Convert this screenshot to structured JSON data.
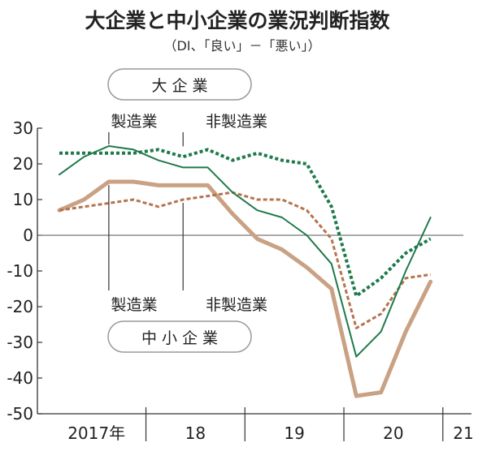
{
  "chart_data": {
    "type": "line",
    "title": "大企業と中小企業の業況判断指数",
    "subtitle": "（DI、「良い」－「悪い」）",
    "ylim": [
      -50,
      30
    ],
    "yticks": [
      30,
      20,
      10,
      0,
      -10,
      -20,
      -30,
      -40,
      -50
    ],
    "ytick_labels": [
      "30",
      "20",
      "10",
      "0",
      "-10",
      "-20",
      "-30",
      "-40",
      "-50"
    ],
    "x": [
      "2017Q1",
      "2017Q2",
      "2017Q3",
      "2017Q4",
      "2018Q1",
      "2018Q2",
      "2018Q3",
      "2018Q4",
      "2019Q1",
      "2019Q2",
      "2019Q3",
      "2019Q4",
      "2020Q1",
      "2020Q2",
      "2020Q3",
      "2020Q4",
      "2021Q1"
    ],
    "year_labels": [
      {
        "label": "2017年",
        "start": 0,
        "end": 3
      },
      {
        "label": "18",
        "start": 4,
        "end": 7
      },
      {
        "label": "19",
        "start": 8,
        "end": 11
      },
      {
        "label": "20",
        "start": 12,
        "end": 15
      },
      {
        "label": "21",
        "start": 16,
        "end": 16
      }
    ],
    "groups": {
      "large": "大企業",
      "small": "中小企業"
    },
    "series_labels": {
      "manufacturing": "製造業",
      "non_manufacturing": "非製造業"
    },
    "series": [
      {
        "id": "large-manufacturing",
        "group": "large",
        "kind": "manufacturing",
        "color": "#1e7a4a",
        "style": "solid",
        "width": 2,
        "values": [
          17,
          22,
          25,
          24,
          21,
          19,
          19,
          12,
          7,
          5,
          0,
          -8,
          -34,
          -27,
          -10,
          5,
          null
        ]
      },
      {
        "id": "large-non-manufacturing",
        "group": "large",
        "kind": "non_manufacturing",
        "color": "#1e7a4a",
        "style": "dotted",
        "width": 4,
        "values": [
          23,
          23,
          23,
          23,
          24,
          22,
          24,
          21,
          23,
          21,
          20,
          8,
          -17,
          -12,
          -5,
          -1,
          null
        ]
      },
      {
        "id": "small-manufacturing",
        "group": "small",
        "kind": "manufacturing",
        "color": "#c9a184",
        "style": "solid",
        "width": 5,
        "values": [
          7,
          10,
          15,
          15,
          14,
          14,
          14,
          6,
          -1,
          -4,
          -9,
          -15,
          -45,
          -44,
          -27,
          -13,
          null
        ]
      },
      {
        "id": "small-non-manufacturing",
        "group": "small",
        "kind": "non_manufacturing",
        "color": "#b5734f",
        "style": "dotted",
        "width": 3,
        "values": [
          7,
          8,
          9,
          10,
          8,
          10,
          11,
          12,
          10,
          10,
          7,
          -1,
          -26,
          -22,
          -12,
          -11,
          null
        ]
      }
    ]
  }
}
